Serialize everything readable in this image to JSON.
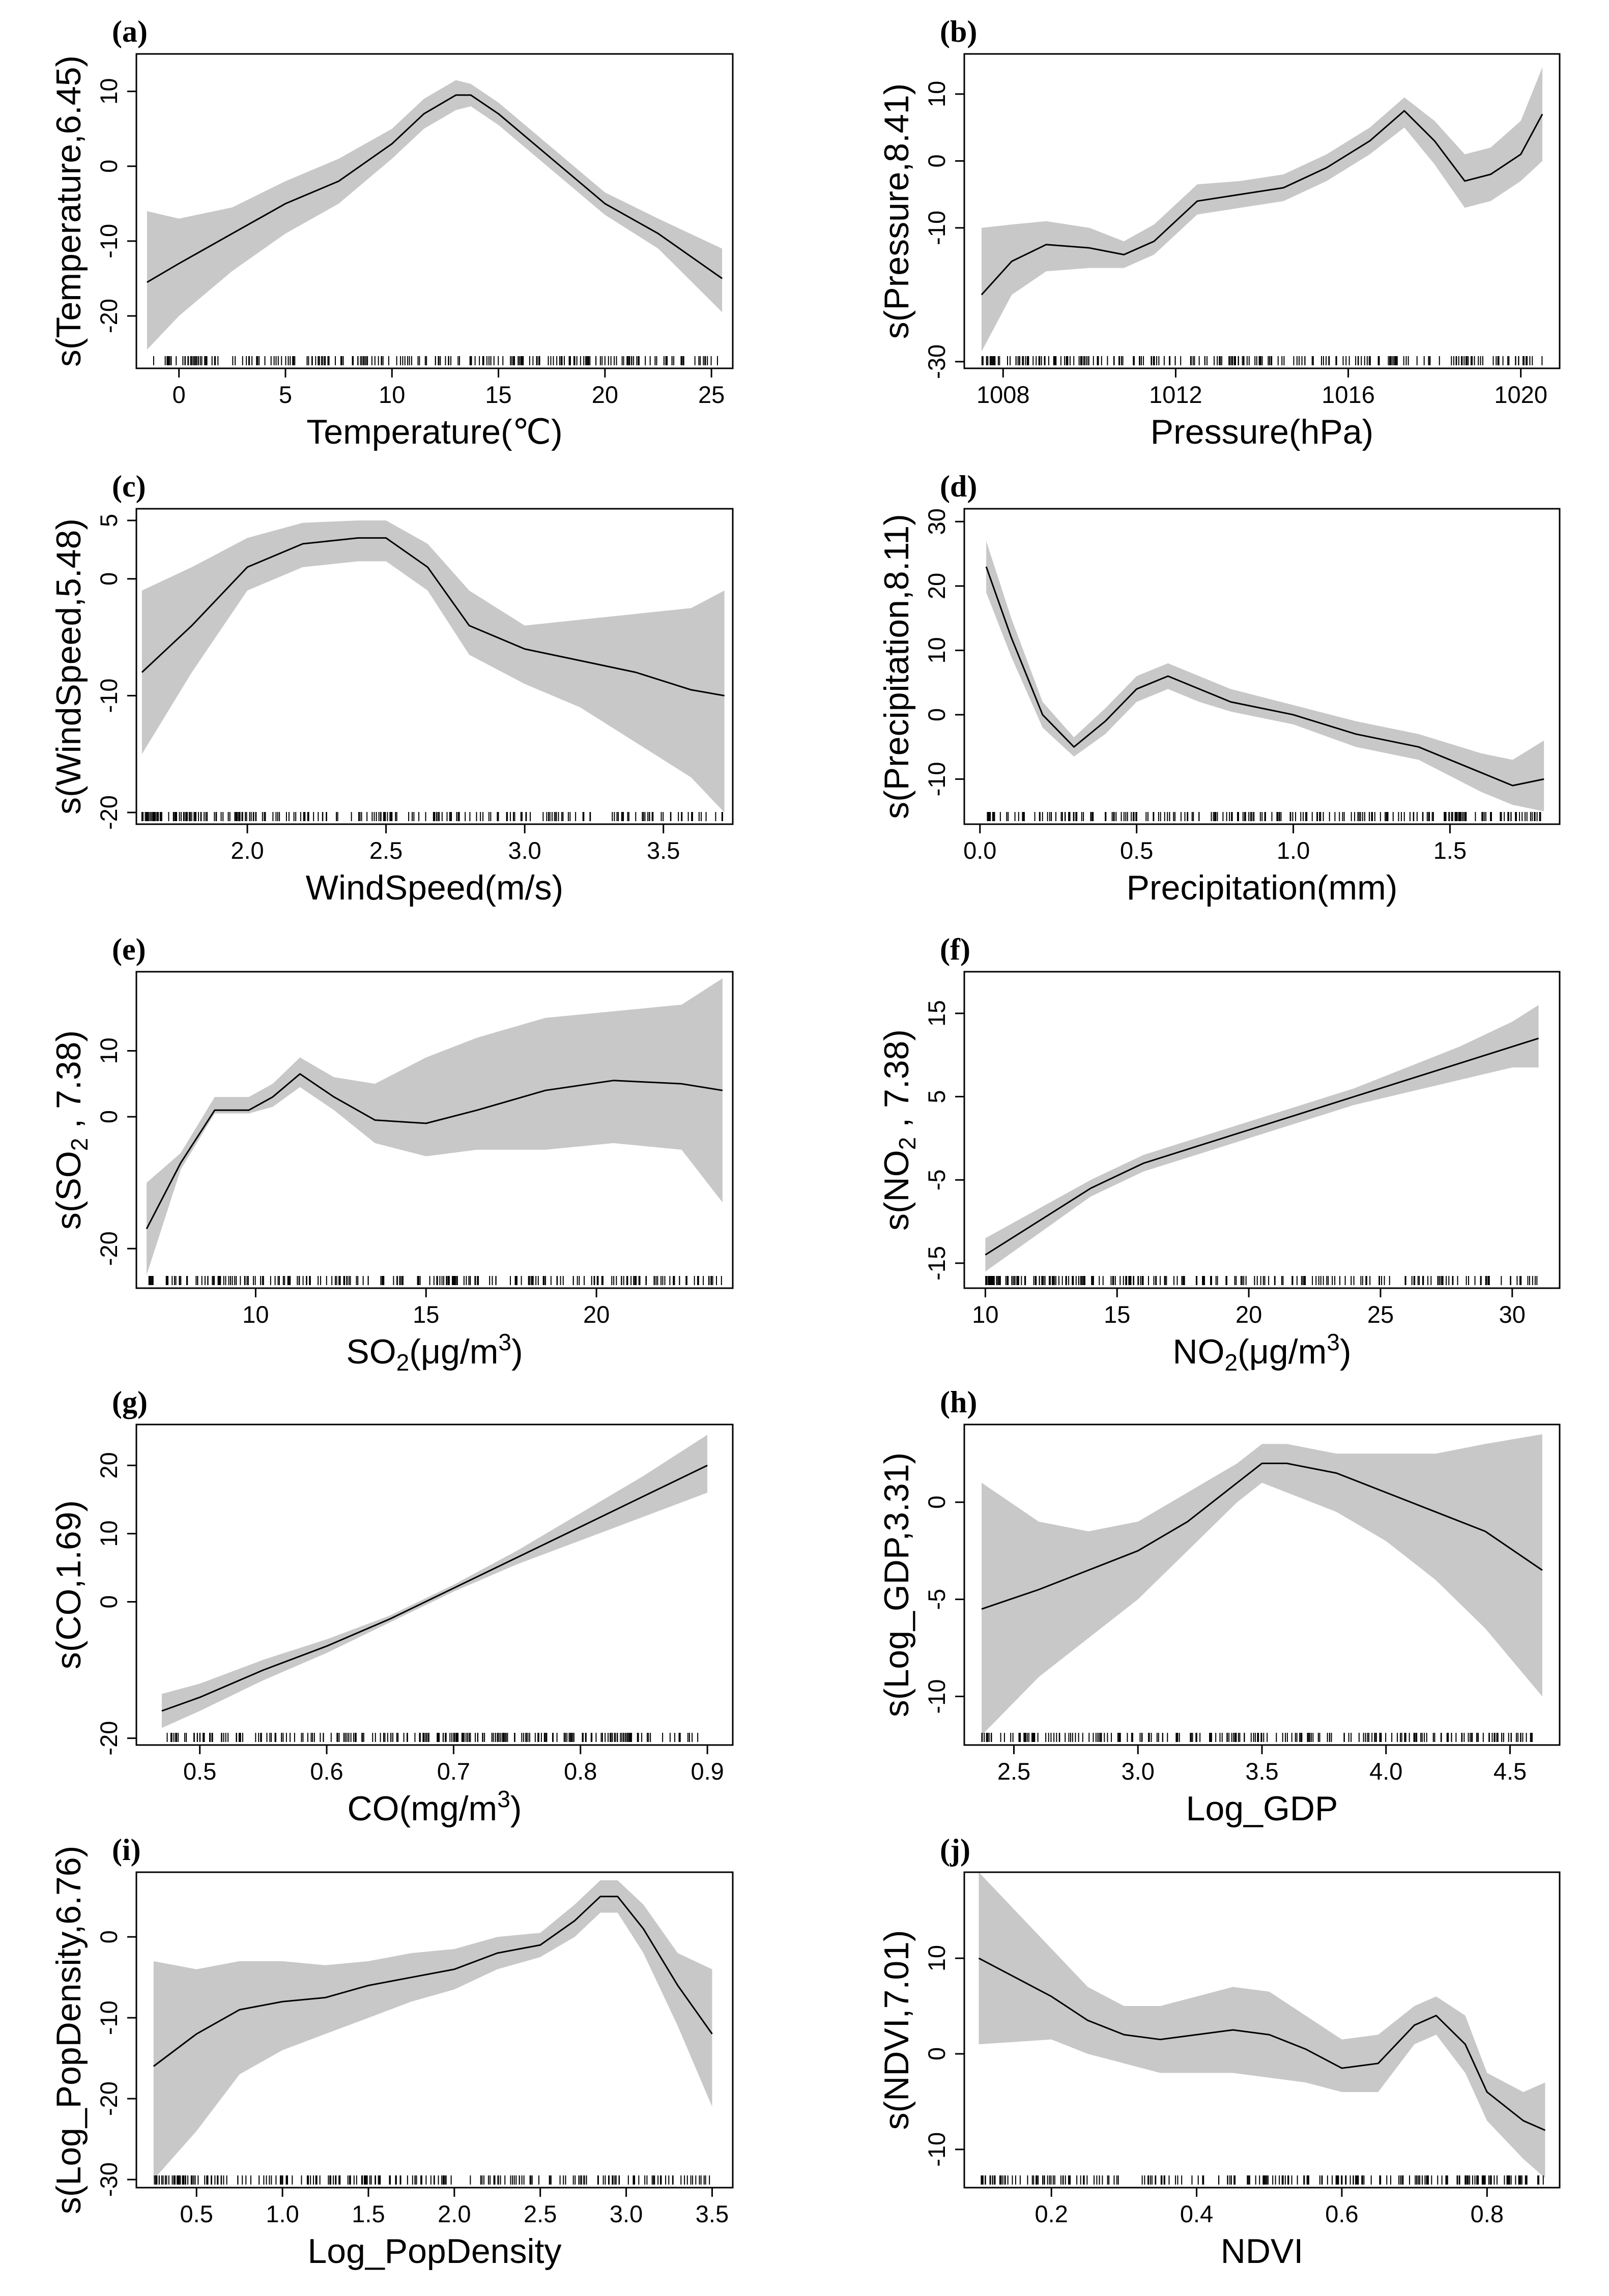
{
  "chart_data": [
    {
      "type": "line",
      "panel_label": "(a)",
      "xlabel": "Temperature(℃)",
      "ylabel": "s(Temperature,6.45)",
      "xlim": [
        -2,
        26
      ],
      "ylim": [
        -27,
        15
      ],
      "xticks": [
        0,
        5,
        10,
        15,
        20,
        25
      ],
      "yticks": [
        -20,
        -10,
        0,
        10
      ],
      "x": [
        -1.5,
        0,
        2.5,
        5,
        7.5,
        10,
        11.5,
        13,
        13.7,
        15,
        17.5,
        20,
        22.5,
        25.5
      ],
      "y": [
        -15.5,
        -13,
        -9,
        -5,
        -2,
        3,
        7,
        9.5,
        9.5,
        7,
        1,
        -5,
        -9,
        -15
      ],
      "lower": [
        -24.5,
        -20,
        -14,
        -9,
        -5,
        1,
        5,
        7.5,
        8,
        5.5,
        -0.5,
        -6.5,
        -11,
        -19.5
      ],
      "upper": [
        -6,
        -7,
        -5.5,
        -2,
        1,
        5,
        9,
        11.5,
        11,
        8.5,
        2.5,
        -3.5,
        -7,
        -11
      ]
    },
    {
      "type": "line",
      "panel_label": "(b)",
      "xlabel": "Pressure(hPa)",
      "ylabel": "s(Pressure,8.41)",
      "xlim": [
        1007.1,
        1020.9
      ],
      "ylim": [
        -31,
        16
      ],
      "xticks": [
        1008,
        1012,
        1016,
        1020
      ],
      "yticks": [
        -30,
        -10,
        0,
        10
      ],
      "x": [
        1007.5,
        1008.2,
        1009,
        1010,
        1010.8,
        1011.5,
        1012.5,
        1013.5,
        1014.5,
        1015.5,
        1016.5,
        1017.3,
        1018,
        1018.7,
        1019.3,
        1020,
        1020.5
      ],
      "y": [
        -20,
        -15,
        -12.5,
        -13,
        -14,
        -12,
        -6,
        -5,
        -4,
        -1,
        3,
        7.5,
        3,
        -3,
        -2,
        1,
        7
      ],
      "lower": [
        -28.5,
        -20,
        -16.5,
        -16,
        -16,
        -14,
        -8,
        -7,
        -6,
        -3,
        1,
        5,
        -0.5,
        -7,
        -6,
        -3,
        0
      ],
      "upper": [
        -10,
        -9.5,
        -9,
        -10,
        -12,
        -9.5,
        -3.5,
        -3,
        -2,
        1,
        5,
        9.5,
        6,
        1,
        2,
        6,
        14
      ]
    },
    {
      "type": "line",
      "panel_label": "(c)",
      "xlabel": "WindSpeed(m/s)",
      "ylabel": "s(WindSpeed,5.48)",
      "xlim": [
        1.6,
        3.75
      ],
      "ylim": [
        -21,
        6
      ],
      "xticks": [
        2.0,
        2.5,
        3.0,
        3.5
      ],
      "yticks": [
        -20,
        -10,
        0,
        5
      ],
      "x": [
        1.62,
        1.8,
        2.0,
        2.2,
        2.4,
        2.5,
        2.65,
        2.8,
        3.0,
        3.2,
        3.4,
        3.6,
        3.72
      ],
      "y": [
        -8,
        -4,
        1,
        3,
        3.5,
        3.5,
        1,
        -4,
        -6,
        -7,
        -8,
        -9.5,
        -10
      ],
      "lower": [
        -15,
        -8,
        -1,
        1,
        1.5,
        1.5,
        -1,
        -6.5,
        -9,
        -11,
        -14,
        -17,
        -20
      ],
      "upper": [
        -1,
        1,
        3.5,
        4.8,
        5,
        5,
        3,
        -1,
        -4,
        -3.5,
        -3,
        -2.5,
        -1
      ]
    },
    {
      "type": "line",
      "panel_label": "(d)",
      "xlabel": "Precipitation(mm)",
      "ylabel": "s(Precipitation,8.11)",
      "xlim": [
        -0.05,
        1.85
      ],
      "ylim": [
        -17,
        32
      ],
      "xticks": [
        0.0,
        0.5,
        1.0,
        1.5
      ],
      "yticks": [
        -10,
        0,
        10,
        20,
        30
      ],
      "x": [
        0.02,
        0.1,
        0.2,
        0.3,
        0.4,
        0.5,
        0.6,
        0.7,
        0.8,
        1.0,
        1.2,
        1.4,
        1.6,
        1.7,
        1.8
      ],
      "y": [
        23,
        12,
        0,
        -5,
        -1,
        4,
        6,
        4,
        2,
        0,
        -3,
        -5,
        -9,
        -11,
        -10
      ],
      "lower": [
        19,
        9,
        -2,
        -6.5,
        -3,
        2,
        4,
        2,
        0.5,
        -1.5,
        -5,
        -7,
        -12,
        -14,
        -15
      ],
      "upper": [
        27,
        15,
        2,
        -3.5,
        1,
        6,
        8,
        6,
        4,
        1.5,
        -1,
        -3,
        -6,
        -7,
        -4
      ]
    },
    {
      "type": "line",
      "panel_label": "(e)",
      "xlabel": "SO2(μg/m3)",
      "ylabel": "s(SO2 , 7.38)",
      "xlim": [
        6.5,
        24
      ],
      "ylim": [
        -26,
        22
      ],
      "xticks": [
        10,
        15,
        20
      ],
      "yticks": [
        -20,
        0,
        10
      ],
      "x": [
        6.8,
        7.8,
        8.8,
        9.8,
        10.5,
        11.3,
        12.3,
        13.5,
        15,
        16.5,
        18.5,
        20.5,
        22.5,
        23.7
      ],
      "y": [
        -17,
        -7,
        1,
        1,
        3,
        6.5,
        3,
        -0.5,
        -1,
        1,
        4,
        5.5,
        5,
        4
      ],
      "lower": [
        -24,
        -8,
        0.5,
        0.5,
        1.5,
        4.5,
        1,
        -4,
        -6,
        -5,
        -5,
        -4,
        -5,
        -13
      ],
      "upper": [
        -10,
        -5.5,
        3,
        3,
        5,
        9,
        6,
        5,
        9,
        12,
        15,
        16,
        17,
        21
      ]
    },
    {
      "type": "line",
      "panel_label": "(f)",
      "xlabel": "NO2(μg/m3)",
      "ylabel": "s(NO2 , 7.38)",
      "xlim": [
        9.2,
        31.8
      ],
      "ylim": [
        -18,
        20
      ],
      "xticks": [
        10,
        15,
        20,
        25,
        30
      ],
      "yticks": [
        -15,
        -5,
        5,
        15
      ],
      "x": [
        10,
        12,
        14,
        16,
        18,
        20,
        22,
        24,
        26,
        28,
        30,
        31
      ],
      "y": [
        -14,
        -10,
        -6,
        -3,
        -1,
        1,
        3,
        5,
        7,
        9,
        11,
        12
      ],
      "lower": [
        -16,
        -11.5,
        -7,
        -4,
        -2,
        0,
        2,
        4,
        5.5,
        7,
        8.5,
        8.5
      ],
      "upper": [
        -12,
        -8.5,
        -5,
        -2,
        0,
        2,
        4,
        6,
        8.5,
        11,
        14,
        16
      ]
    },
    {
      "type": "line",
      "panel_label": "(g)",
      "xlabel": "CO(mg/m3)",
      "ylabel": "s(CO,1.69)",
      "xlim": [
        0.45,
        0.92
      ],
      "ylim": [
        -21,
        26
      ],
      "xticks": [
        0.5,
        0.6,
        0.7,
        0.8,
        0.9
      ],
      "yticks": [
        -20,
        0,
        10,
        20
      ],
      "x": [
        0.47,
        0.5,
        0.55,
        0.6,
        0.65,
        0.7,
        0.75,
        0.8,
        0.85,
        0.9
      ],
      "y": [
        -16,
        -14,
        -10,
        -6.5,
        -2.5,
        2,
        6.5,
        11,
        15.5,
        20
      ],
      "lower": [
        -18.5,
        -16,
        -11.5,
        -7.5,
        -3,
        1.5,
        5.5,
        9,
        12.5,
        16
      ],
      "upper": [
        -13.5,
        -12,
        -8.5,
        -5.5,
        -2,
        2.5,
        7.5,
        13,
        18.5,
        24.5
      ]
    },
    {
      "type": "line",
      "panel_label": "(h)",
      "xlabel": "Log_GDP",
      "ylabel": "s(Log_GDP,3.31)",
      "xlim": [
        2.3,
        4.7
      ],
      "ylim": [
        -12.5,
        4
      ],
      "xticks": [
        2.5,
        3.0,
        3.5,
        4.0,
        4.5
      ],
      "yticks": [
        -10,
        -5,
        0
      ],
      "x": [
        2.37,
        2.6,
        2.8,
        3.0,
        3.2,
        3.4,
        3.5,
        3.6,
        3.8,
        4.0,
        4.2,
        4.4,
        4.63
      ],
      "y": [
        -5.5,
        -4.5,
        -3.5,
        -2.5,
        -1,
        1,
        2,
        2,
        1.5,
        0.5,
        -0.5,
        -1.5,
        -3.5
      ],
      "lower": [
        -12,
        -9,
        -7,
        -5,
        -2.5,
        0,
        1,
        0.5,
        -0.5,
        -2,
        -4,
        -6.5,
        -10
      ],
      "upper": [
        1,
        -1,
        -1.5,
        -1,
        0.5,
        2,
        3,
        3,
        2.5,
        2.5,
        2.5,
        3,
        3.5
      ]
    },
    {
      "type": "line",
      "panel_label": "(i)",
      "xlabel": "Log_PopDensity",
      "ylabel": "s(Log_PopDensity,6.76)",
      "xlim": [
        0.15,
        3.62
      ],
      "ylim": [
        -31,
        8
      ],
      "xticks": [
        0.5,
        1.0,
        1.5,
        2.0,
        2.5,
        3.0,
        3.5
      ],
      "yticks": [
        -30,
        -20,
        -10,
        0
      ],
      "x": [
        0.25,
        0.5,
        0.75,
        1.0,
        1.25,
        1.5,
        1.75,
        2.0,
        2.25,
        2.5,
        2.7,
        2.85,
        2.95,
        3.1,
        3.3,
        3.5
      ],
      "y": [
        -16,
        -12,
        -9,
        -8,
        -7.5,
        -6,
        -5,
        -4,
        -2,
        -1,
        2,
        5,
        5,
        1,
        -6,
        -12
      ],
      "lower": [
        -30,
        -24,
        -17,
        -14,
        -12,
        -10,
        -8,
        -6.5,
        -4,
        -2.5,
        0,
        3,
        3,
        -2,
        -11,
        -21
      ],
      "upper": [
        -3,
        -4,
        -3,
        -3,
        -3.5,
        -3,
        -2,
        -1.5,
        0,
        0.5,
        4,
        7,
        7,
        4,
        -2,
        -4
      ]
    },
    {
      "type": "line",
      "panel_label": "(j)",
      "xlabel": "NDVI",
      "ylabel": "s(NDVI,7.01)",
      "xlim": [
        0.08,
        0.9
      ],
      "ylim": [
        -14,
        19
      ],
      "xticks": [
        0.2,
        0.4,
        0.6,
        0.8
      ],
      "yticks": [
        -10,
        0,
        10
      ],
      "x": [
        0.1,
        0.2,
        0.25,
        0.3,
        0.35,
        0.4,
        0.45,
        0.5,
        0.55,
        0.6,
        0.65,
        0.7,
        0.73,
        0.77,
        0.8,
        0.85,
        0.88
      ],
      "y": [
        10,
        6,
        3.5,
        2,
        1.5,
        2,
        2.5,
        2,
        0.5,
        -1.5,
        -1,
        3,
        4,
        1,
        -4,
        -7,
        -8
      ],
      "lower": [
        1,
        1.5,
        0,
        -1,
        -2,
        -2,
        -2,
        -2.5,
        -3,
        -4,
        -4,
        1,
        2,
        -2,
        -7,
        -11,
        -13
      ],
      "upper": [
        19,
        11,
        7,
        5,
        5,
        6,
        7,
        6.5,
        4,
        1.5,
        2,
        5,
        6,
        4,
        -2,
        -4,
        -3
      ]
    }
  ]
}
